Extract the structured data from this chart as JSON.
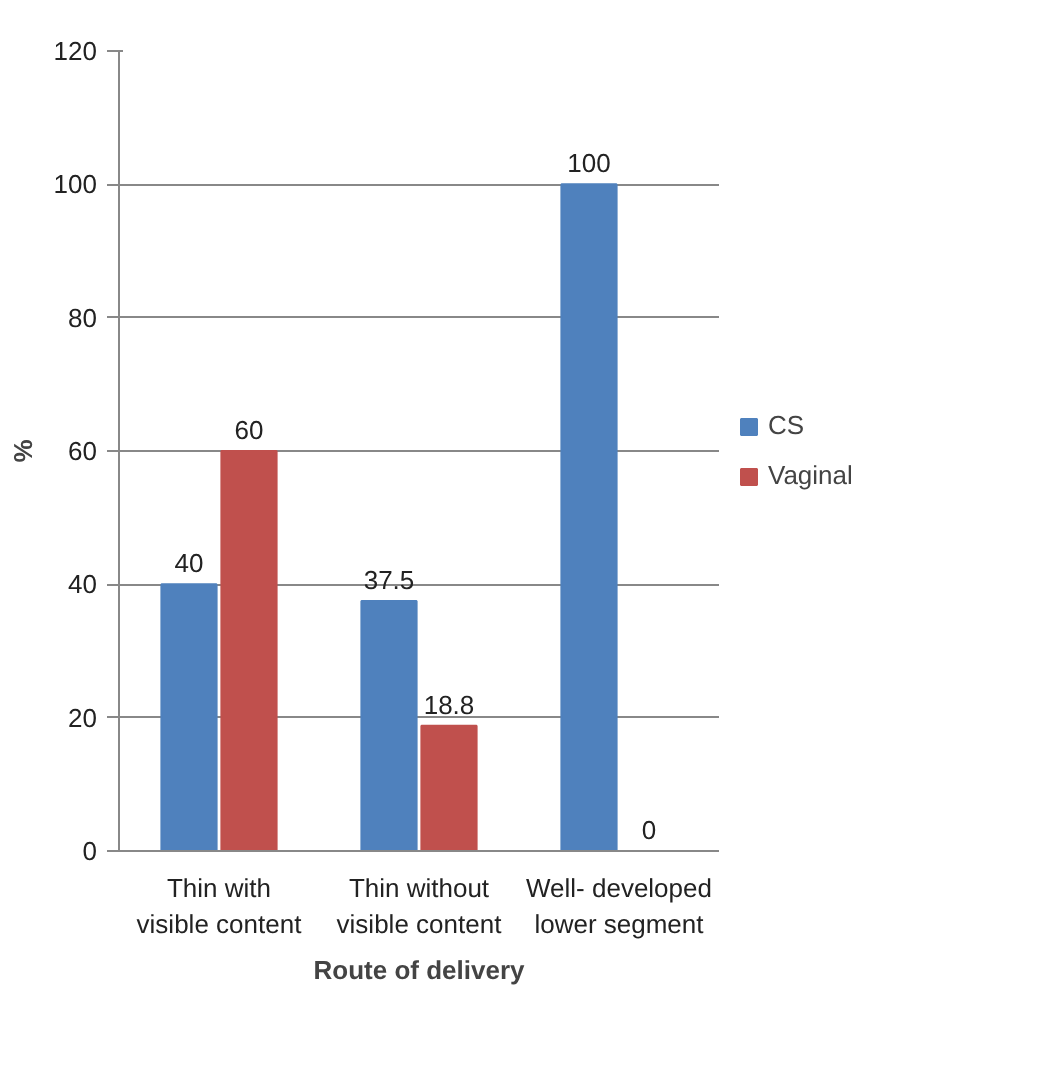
{
  "chart_data": {
    "type": "bar",
    "xlabel": "Route of delivery",
    "ylabel": "%",
    "categories": [
      "Thin with visible content",
      "Thin without visible content",
      "Well- developed lower segment"
    ],
    "series": [
      {
        "name": "CS",
        "color": "#4f81bd",
        "values": [
          40,
          37.5,
          100
        ]
      },
      {
        "name": "Vaginal",
        "color": "#c0504d",
        "values": [
          60,
          18.8,
          0
        ]
      }
    ],
    "ylim": [
      0,
      120
    ],
    "yticks": [
      0,
      20,
      40,
      60,
      80,
      100,
      120
    ],
    "grid": "y",
    "legend": "right",
    "data_labels": true
  }
}
